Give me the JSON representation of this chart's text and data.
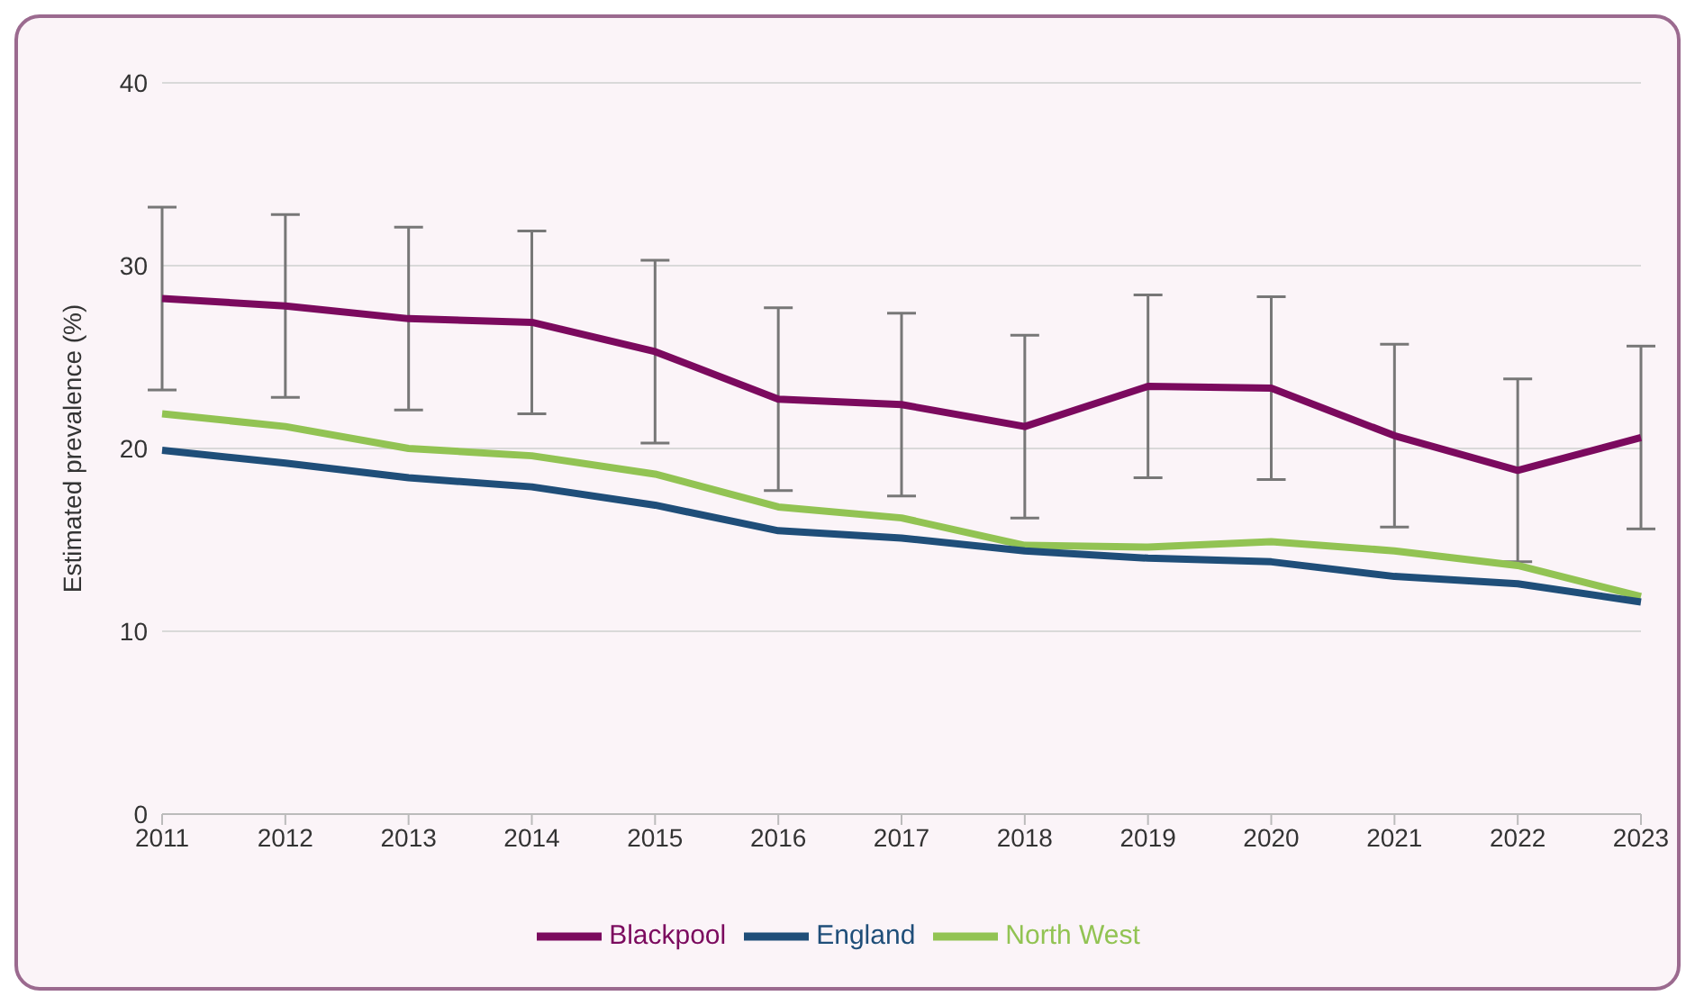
{
  "chart_data": {
    "type": "line",
    "ylabel": "Estimated prevalence (%)",
    "categories": [
      "2011",
      "2012",
      "2013",
      "2014",
      "2015",
      "2016",
      "2017",
      "2018",
      "2019",
      "2020",
      "2021",
      "2022",
      "2023"
    ],
    "series": [
      {
        "name": "Blackpool",
        "color": "#7b0a5e",
        "values": [
          28.2,
          27.8,
          27.1,
          26.9,
          25.3,
          22.7,
          22.4,
          21.2,
          23.4,
          23.3,
          20.7,
          18.8,
          20.6
        ],
        "errors": [
          5,
          5,
          5,
          5,
          5,
          5,
          5,
          5,
          5,
          5,
          5,
          5,
          5
        ]
      },
      {
        "name": "North West",
        "color": "#92c353",
        "values": [
          21.9,
          21.2,
          20.0,
          19.6,
          18.6,
          16.8,
          16.2,
          14.7,
          14.6,
          14.9,
          14.4,
          13.6,
          11.9
        ]
      },
      {
        "name": "England",
        "color": "#1f4e79",
        "values": [
          19.9,
          19.2,
          18.4,
          17.9,
          16.9,
          15.5,
          15.1,
          14.4,
          14.0,
          13.8,
          13.0,
          12.6,
          11.6
        ]
      }
    ],
    "ylim": [
      0,
      40
    ],
    "yticks": [
      0,
      10,
      20,
      30,
      40
    ],
    "grid": "y",
    "legend": "bottom",
    "marker": "none",
    "line_style": "solid"
  }
}
